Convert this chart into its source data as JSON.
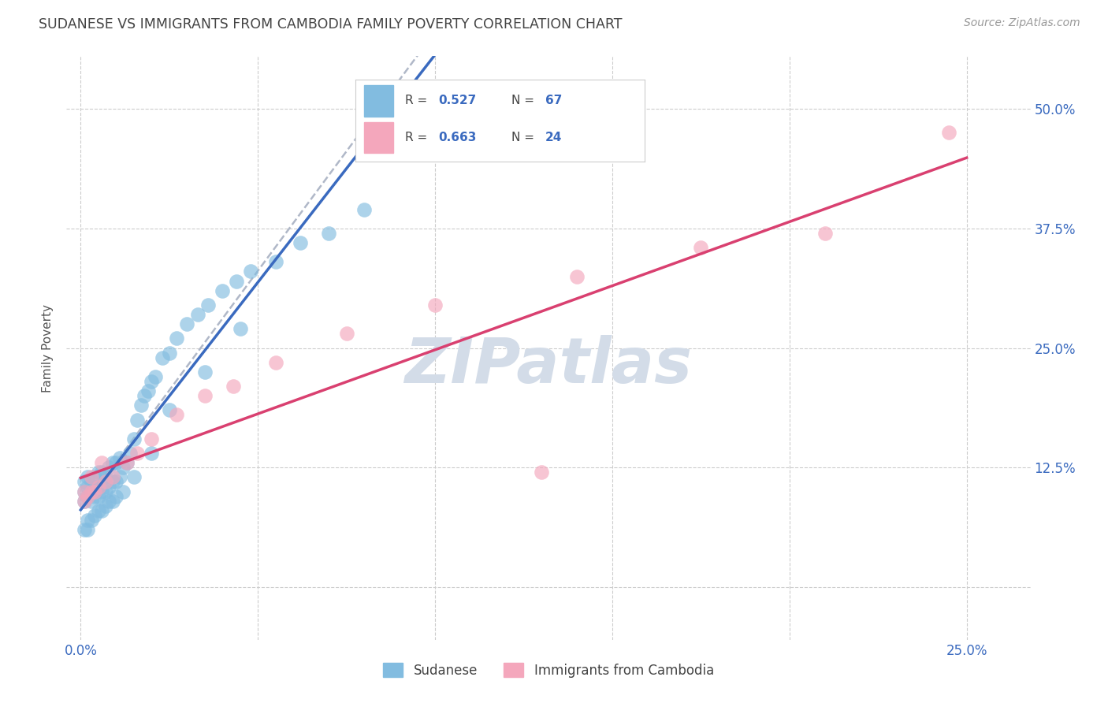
{
  "title": "SUDANESE VS IMMIGRANTS FROM CAMBODIA FAMILY POVERTY CORRELATION CHART",
  "source": "Source: ZipAtlas.com",
  "ylabel": "Family Poverty",
  "x_tick_pos": [
    0.0,
    0.05,
    0.1,
    0.15,
    0.2,
    0.25
  ],
  "x_tick_labels": [
    "0.0%",
    "",
    "",
    "",
    "",
    "25.0%"
  ],
  "y_tick_pos": [
    0.0,
    0.125,
    0.25,
    0.375,
    0.5
  ],
  "y_tick_labels": [
    "",
    "12.5%",
    "25.0%",
    "37.5%",
    "50.0%"
  ],
  "xlim": [
    -0.004,
    0.268
  ],
  "ylim": [
    -0.055,
    0.555
  ],
  "legend_label1": "Sudanese",
  "legend_label2": "Immigrants from Cambodia",
  "R1": "0.527",
  "N1": "67",
  "R2": "0.663",
  "N2": "24",
  "color1": "#82bce0",
  "color2": "#f4a7bc",
  "trendline1_color": "#3a6abf",
  "trendline2_color": "#d94070",
  "dash_color": "#b0b8c8",
  "watermark": "ZIPatlas",
  "watermark_color": "#d3dce8",
  "sudanese_x": [
    0.001,
    0.001,
    0.001,
    0.002,
    0.002,
    0.002,
    0.003,
    0.003,
    0.003,
    0.004,
    0.004,
    0.004,
    0.005,
    0.005,
    0.005,
    0.006,
    0.006,
    0.007,
    0.007,
    0.008,
    0.008,
    0.009,
    0.009,
    0.01,
    0.01,
    0.011,
    0.011,
    0.012,
    0.013,
    0.014,
    0.015,
    0.016,
    0.017,
    0.018,
    0.019,
    0.02,
    0.021,
    0.023,
    0.025,
    0.027,
    0.03,
    0.033,
    0.036,
    0.04,
    0.044,
    0.048,
    0.055,
    0.062,
    0.07,
    0.08,
    0.001,
    0.002,
    0.002,
    0.003,
    0.004,
    0.005,
    0.006,
    0.007,
    0.008,
    0.009,
    0.01,
    0.012,
    0.015,
    0.02,
    0.025,
    0.035,
    0.045
  ],
  "sudanese_y": [
    0.09,
    0.1,
    0.11,
    0.095,
    0.105,
    0.115,
    0.09,
    0.1,
    0.11,
    0.095,
    0.105,
    0.115,
    0.095,
    0.105,
    0.12,
    0.1,
    0.12,
    0.1,
    0.115,
    0.105,
    0.125,
    0.11,
    0.13,
    0.11,
    0.13,
    0.115,
    0.135,
    0.125,
    0.13,
    0.14,
    0.155,
    0.175,
    0.19,
    0.2,
    0.205,
    0.215,
    0.22,
    0.24,
    0.245,
    0.26,
    0.275,
    0.285,
    0.295,
    0.31,
    0.32,
    0.33,
    0.34,
    0.36,
    0.37,
    0.395,
    0.06,
    0.06,
    0.07,
    0.07,
    0.075,
    0.08,
    0.08,
    0.085,
    0.09,
    0.09,
    0.095,
    0.1,
    0.115,
    0.14,
    0.185,
    0.225,
    0.27
  ],
  "cambodia_x": [
    0.001,
    0.002,
    0.003,
    0.004,
    0.005,
    0.007,
    0.009,
    0.013,
    0.016,
    0.02,
    0.027,
    0.035,
    0.043,
    0.055,
    0.075,
    0.1,
    0.14,
    0.175,
    0.21,
    0.245,
    0.001,
    0.003,
    0.006,
    0.13
  ],
  "cambodia_y": [
    0.09,
    0.095,
    0.1,
    0.1,
    0.105,
    0.11,
    0.115,
    0.13,
    0.14,
    0.155,
    0.18,
    0.2,
    0.21,
    0.235,
    0.265,
    0.295,
    0.325,
    0.355,
    0.37,
    0.475,
    0.1,
    0.115,
    0.13,
    0.12
  ]
}
